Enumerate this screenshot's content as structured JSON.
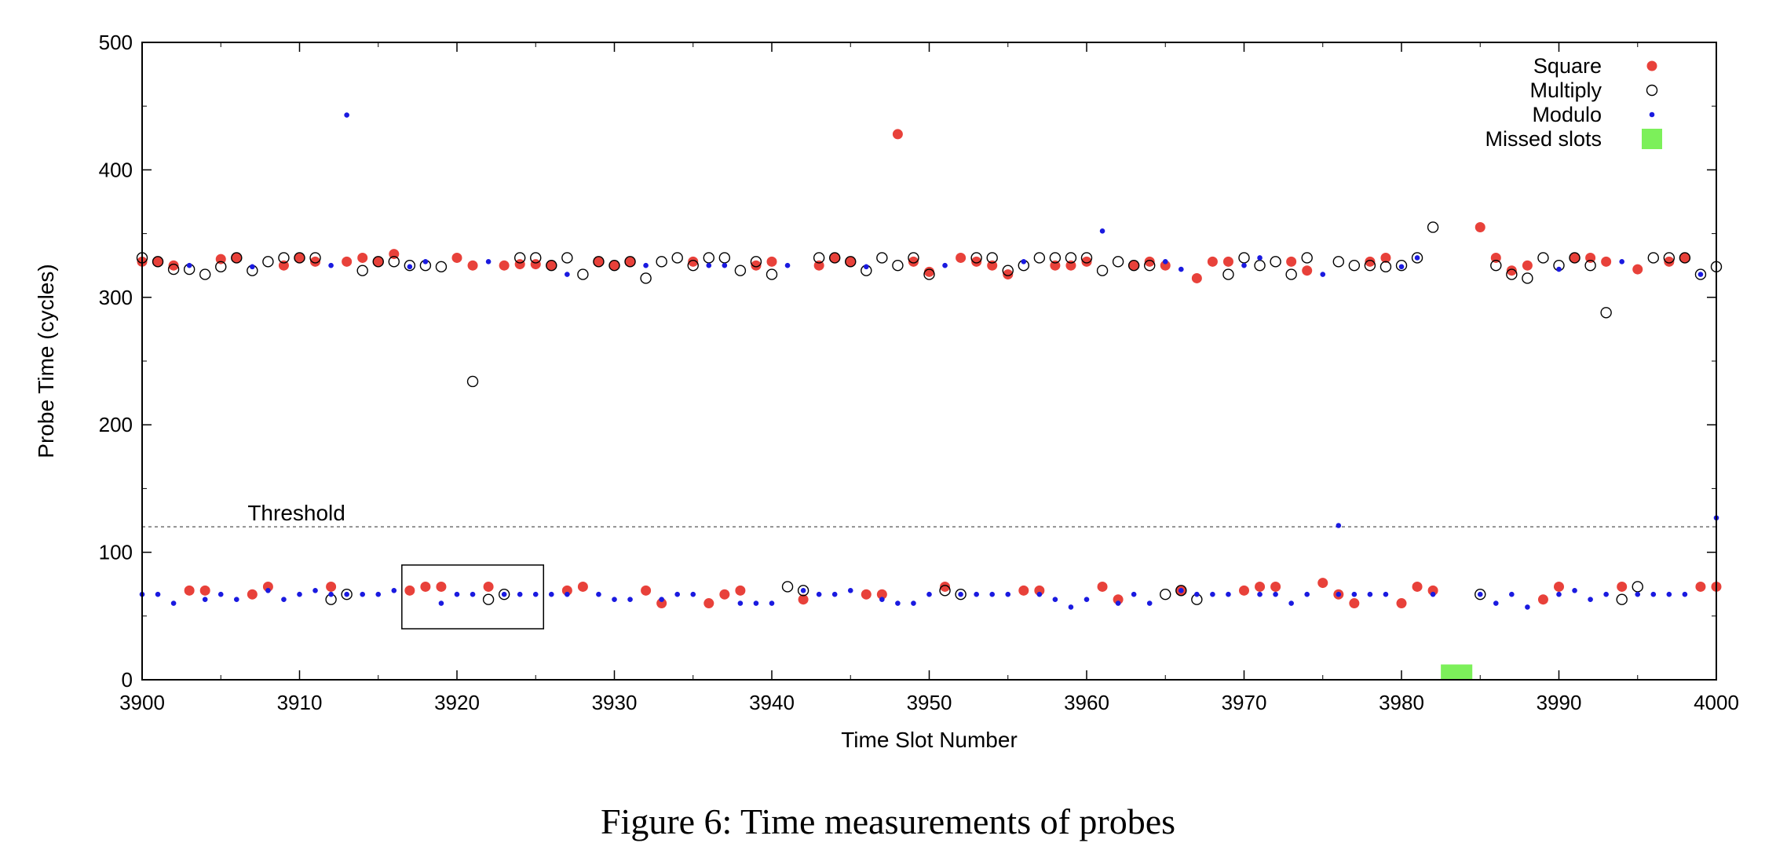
{
  "chart_data": {
    "type": "scatter",
    "xlabel": "Time Slot Number",
    "ylabel": "Probe Time (cycles)",
    "xlim": [
      3900,
      4000
    ],
    "ylim": [
      0,
      500
    ],
    "xticks": [
      3900,
      3910,
      3920,
      3930,
      3940,
      3950,
      3960,
      3970,
      3980,
      3990,
      4000
    ],
    "yticks": [
      0,
      100,
      200,
      300,
      400,
      500
    ],
    "legend_position": "top-right",
    "grid": false,
    "threshold": {
      "label": "Threshold",
      "value": 120
    },
    "highlight_box": {
      "x": [
        3916.5,
        3925.5
      ],
      "y": [
        40,
        90
      ]
    },
    "series": [
      {
        "name": "Square",
        "marker": "filled-circle",
        "color": "#e8413a",
        "points": [
          [
            3900,
            328
          ],
          [
            3901,
            328
          ],
          [
            3902,
            325
          ],
          [
            3905,
            330
          ],
          [
            3906,
            331
          ],
          [
            3909,
            325
          ],
          [
            3910,
            331
          ],
          [
            3911,
            328
          ],
          [
            3913,
            328
          ],
          [
            3914,
            331
          ],
          [
            3915,
            328
          ],
          [
            3916,
            334
          ],
          [
            3920,
            331
          ],
          [
            3921,
            325
          ],
          [
            3923,
            325
          ],
          [
            3924,
            326
          ],
          [
            3925,
            326
          ],
          [
            3926,
            325
          ],
          [
            3929,
            328
          ],
          [
            3930,
            325
          ],
          [
            3931,
            328
          ],
          [
            3935,
            328
          ],
          [
            3939,
            325
          ],
          [
            3940,
            328
          ],
          [
            3943,
            325
          ],
          [
            3944,
            331
          ],
          [
            3945,
            328
          ],
          [
            3948,
            428
          ],
          [
            3949,
            328
          ],
          [
            3950,
            320
          ],
          [
            3952,
            331
          ],
          [
            3953,
            328
          ],
          [
            3954,
            325
          ],
          [
            3955,
            318
          ],
          [
            3958,
            325
          ],
          [
            3959,
            325
          ],
          [
            3960,
            328
          ],
          [
            3963,
            325
          ],
          [
            3964,
            328
          ],
          [
            3965,
            325
          ],
          [
            3967,
            315
          ],
          [
            3968,
            328
          ],
          [
            3969,
            328
          ],
          [
            3973,
            328
          ],
          [
            3974,
            321
          ],
          [
            3978,
            328
          ],
          [
            3979,
            331
          ],
          [
            3985,
            355
          ],
          [
            3986,
            331
          ],
          [
            3987,
            321
          ],
          [
            3988,
            325
          ],
          [
            3991,
            331
          ],
          [
            3992,
            331
          ],
          [
            3993,
            328
          ],
          [
            3995,
            322
          ],
          [
            3997,
            328
          ],
          [
            3998,
            331
          ],
          [
            3903,
            70
          ],
          [
            3904,
            70
          ],
          [
            3907,
            67
          ],
          [
            3908,
            73
          ],
          [
            3912,
            73
          ],
          [
            3917,
            70
          ],
          [
            3918,
            73
          ],
          [
            3919,
            73
          ],
          [
            3922,
            73
          ],
          [
            3927,
            70
          ],
          [
            3928,
            73
          ],
          [
            3932,
            70
          ],
          [
            3933,
            60
          ],
          [
            3936,
            60
          ],
          [
            3937,
            67
          ],
          [
            3938,
            70
          ],
          [
            3942,
            63
          ],
          [
            3946,
            67
          ],
          [
            3947,
            67
          ],
          [
            3951,
            73
          ],
          [
            3956,
            70
          ],
          [
            3957,
            70
          ],
          [
            3961,
            73
          ],
          [
            3962,
            63
          ],
          [
            3966,
            70
          ],
          [
            3970,
            70
          ],
          [
            3971,
            73
          ],
          [
            3972,
            73
          ],
          [
            3975,
            76
          ],
          [
            3976,
            67
          ],
          [
            3977,
            60
          ],
          [
            3980,
            60
          ],
          [
            3981,
            73
          ],
          [
            3982,
            70
          ],
          [
            3989,
            63
          ],
          [
            3990,
            73
          ],
          [
            3994,
            73
          ],
          [
            3999,
            73
          ],
          [
            4000,
            73
          ]
        ]
      },
      {
        "name": "Multiply",
        "marker": "open-circle",
        "color": "#000000",
        "points": [
          [
            3900,
            331
          ],
          [
            3901,
            328
          ],
          [
            3902,
            322
          ],
          [
            3903,
            322
          ],
          [
            3904,
            318
          ],
          [
            3905,
            324
          ],
          [
            3906,
            331
          ],
          [
            3907,
            321
          ],
          [
            3908,
            328
          ],
          [
            3909,
            331
          ],
          [
            3910,
            331
          ],
          [
            3911,
            331
          ],
          [
            3914,
            321
          ],
          [
            3915,
            328
          ],
          [
            3916,
            328
          ],
          [
            3917,
            325
          ],
          [
            3918,
            325
          ],
          [
            3919,
            324
          ],
          [
            3921,
            234
          ],
          [
            3924,
            331
          ],
          [
            3925,
            331
          ],
          [
            3926,
            325
          ],
          [
            3927,
            331
          ],
          [
            3928,
            318
          ],
          [
            3929,
            328
          ],
          [
            3930,
            325
          ],
          [
            3931,
            328
          ],
          [
            3932,
            315
          ],
          [
            3933,
            328
          ],
          [
            3934,
            331
          ],
          [
            3935,
            325
          ],
          [
            3936,
            331
          ],
          [
            3937,
            331
          ],
          [
            3938,
            321
          ],
          [
            3939,
            328
          ],
          [
            3940,
            318
          ],
          [
            3943,
            331
          ],
          [
            3944,
            331
          ],
          [
            3945,
            328
          ],
          [
            3946,
            321
          ],
          [
            3947,
            331
          ],
          [
            3948,
            325
          ],
          [
            3949,
            331
          ],
          [
            3950,
            318
          ],
          [
            3953,
            331
          ],
          [
            3954,
            331
          ],
          [
            3955,
            321
          ],
          [
            3956,
            325
          ],
          [
            3957,
            331
          ],
          [
            3958,
            331
          ],
          [
            3959,
            331
          ],
          [
            3960,
            331
          ],
          [
            3961,
            321
          ],
          [
            3962,
            328
          ],
          [
            3963,
            325
          ],
          [
            3964,
            325
          ],
          [
            3969,
            318
          ],
          [
            3970,
            331
          ],
          [
            3971,
            325
          ],
          [
            3972,
            328
          ],
          [
            3973,
            318
          ],
          [
            3974,
            331
          ],
          [
            3976,
            328
          ],
          [
            3977,
            325
          ],
          [
            3978,
            325
          ],
          [
            3979,
            324
          ],
          [
            3980,
            325
          ],
          [
            3981,
            331
          ],
          [
            3982,
            355
          ],
          [
            3986,
            325
          ],
          [
            3987,
            318
          ],
          [
            3988,
            315
          ],
          [
            3989,
            331
          ],
          [
            3990,
            325
          ],
          [
            3991,
            331
          ],
          [
            3992,
            325
          ],
          [
            3993,
            288
          ],
          [
            3996,
            331
          ],
          [
            3997,
            331
          ],
          [
            3998,
            331
          ],
          [
            3999,
            318
          ],
          [
            4000,
            324
          ],
          [
            3912,
            63
          ],
          [
            3913,
            67
          ],
          [
            3922,
            63
          ],
          [
            3923,
            67
          ],
          [
            3941,
            73
          ],
          [
            3942,
            70
          ],
          [
            3951,
            70
          ],
          [
            3952,
            67
          ],
          [
            3965,
            67
          ],
          [
            3966,
            70
          ],
          [
            3967,
            63
          ],
          [
            3985,
            67
          ],
          [
            3994,
            63
          ],
          [
            3995,
            73
          ]
        ]
      },
      {
        "name": "Modulo",
        "marker": "dot",
        "color": "#1a1ae0",
        "points": [
          [
            3903,
            325
          ],
          [
            3907,
            324
          ],
          [
            3912,
            325
          ],
          [
            3913,
            443
          ],
          [
            3917,
            324
          ],
          [
            3918,
            328
          ],
          [
            3922,
            328
          ],
          [
            3927,
            318
          ],
          [
            3932,
            325
          ],
          [
            3936,
            325
          ],
          [
            3937,
            325
          ],
          [
            3941,
            325
          ],
          [
            3946,
            324
          ],
          [
            3951,
            325
          ],
          [
            3956,
            328
          ],
          [
            3961,
            352
          ],
          [
            3965,
            328
          ],
          [
            3966,
            322
          ],
          [
            3970,
            325
          ],
          [
            3971,
            331
          ],
          [
            3975,
            318
          ],
          [
            3980,
            324
          ],
          [
            3981,
            331
          ],
          [
            3990,
            322
          ],
          [
            3994,
            328
          ],
          [
            3999,
            318
          ],
          [
            3976,
            121
          ],
          [
            4000,
            127
          ],
          [
            3900,
            67
          ],
          [
            3901,
            67
          ],
          [
            3902,
            60
          ],
          [
            3904,
            63
          ],
          [
            3905,
            67
          ],
          [
            3906,
            63
          ],
          [
            3908,
            70
          ],
          [
            3909,
            63
          ],
          [
            3910,
            67
          ],
          [
            3911,
            70
          ],
          [
            3912,
            67
          ],
          [
            3913,
            67
          ],
          [
            3914,
            67
          ],
          [
            3915,
            67
          ],
          [
            3916,
            70
          ],
          [
            3919,
            60
          ],
          [
            3920,
            67
          ],
          [
            3921,
            67
          ],
          [
            3923,
            67
          ],
          [
            3924,
            67
          ],
          [
            3925,
            67
          ],
          [
            3926,
            67
          ],
          [
            3927,
            67
          ],
          [
            3929,
            67
          ],
          [
            3930,
            63
          ],
          [
            3931,
            63
          ],
          [
            3933,
            63
          ],
          [
            3934,
            67
          ],
          [
            3935,
            67
          ],
          [
            3938,
            60
          ],
          [
            3939,
            60
          ],
          [
            3940,
            60
          ],
          [
            3942,
            70
          ],
          [
            3943,
            67
          ],
          [
            3944,
            67
          ],
          [
            3945,
            70
          ],
          [
            3947,
            63
          ],
          [
            3948,
            60
          ],
          [
            3949,
            60
          ],
          [
            3950,
            67
          ],
          [
            3952,
            67
          ],
          [
            3953,
            67
          ],
          [
            3954,
            67
          ],
          [
            3955,
            67
          ],
          [
            3957,
            67
          ],
          [
            3958,
            63
          ],
          [
            3959,
            57
          ],
          [
            3960,
            63
          ],
          [
            3962,
            60
          ],
          [
            3963,
            67
          ],
          [
            3964,
            60
          ],
          [
            3966,
            70
          ],
          [
            3967,
            67
          ],
          [
            3968,
            67
          ],
          [
            3969,
            67
          ],
          [
            3971,
            67
          ],
          [
            3972,
            67
          ],
          [
            3973,
            60
          ],
          [
            3974,
            67
          ],
          [
            3976,
            67
          ],
          [
            3977,
            67
          ],
          [
            3978,
            67
          ],
          [
            3979,
            67
          ],
          [
            3982,
            67
          ],
          [
            3985,
            67
          ],
          [
            3986,
            60
          ],
          [
            3987,
            67
          ],
          [
            3988,
            57
          ],
          [
            3990,
            67
          ],
          [
            3991,
            70
          ],
          [
            3992,
            63
          ],
          [
            3993,
            67
          ],
          [
            3995,
            67
          ],
          [
            3996,
            67
          ],
          [
            3997,
            67
          ],
          [
            3998,
            67
          ]
        ]
      },
      {
        "name": "Missed slots",
        "marker": "green-bar",
        "color": "#7cf05a",
        "ranges": [
          [
            3982.5,
            3984.5
          ]
        ]
      }
    ]
  },
  "caption": "Figure 6: Time measurements of probes"
}
